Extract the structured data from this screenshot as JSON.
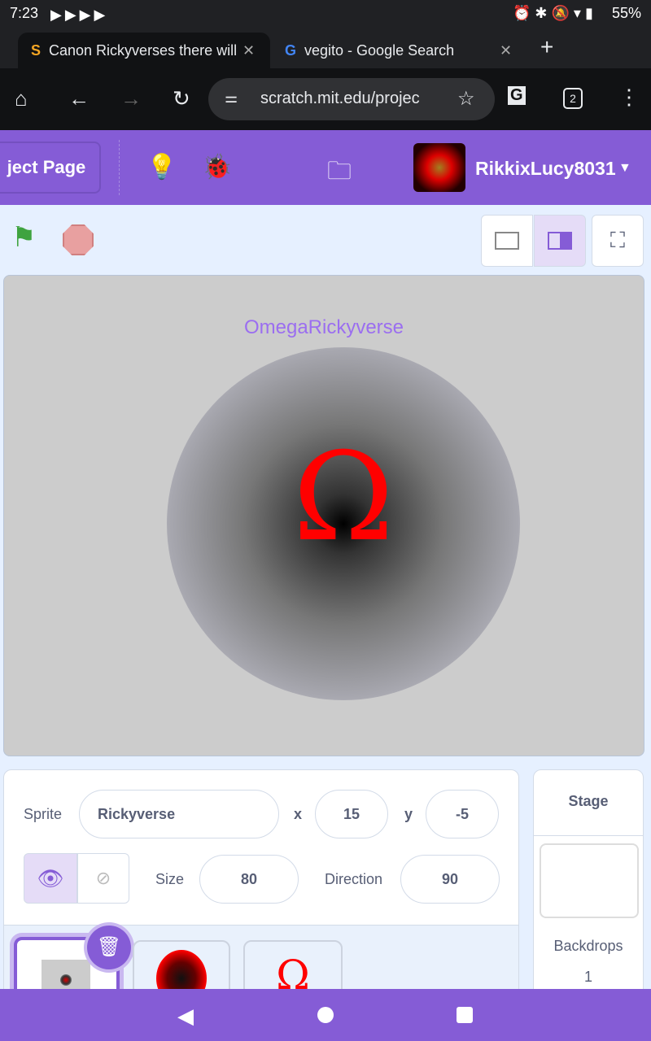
{
  "status": {
    "time": "7:23",
    "battery": "55%"
  },
  "tabs": [
    {
      "title": "Canon Rickyverses there will",
      "active": true
    },
    {
      "title": "vegito - Google Search",
      "active": false
    }
  ],
  "toolbar": {
    "url": "scratch.mit.edu/projec",
    "tab_count": "2"
  },
  "menubar": {
    "project_page": "ject Page",
    "username": "RikkixLucy8031"
  },
  "stage": {
    "title": "OmegaRickyverse",
    "symbol": "Ω"
  },
  "sprite": {
    "label": "Sprite",
    "name": "Rickyverse",
    "x_label": "x",
    "x": "15",
    "y_label": "y",
    "y": "-5",
    "size_label": "Size",
    "size": "80",
    "direction_label": "Direction",
    "direction": "90"
  },
  "sprites": [
    {
      "name": "Rickyverse",
      "selected": true
    },
    {
      "name": "red orb"
    },
    {
      "name": "omega",
      "symbol": "Ω"
    }
  ],
  "stage_panel": {
    "title": "Stage",
    "backdrops_label": "Backdrops",
    "backdrops": "1"
  },
  "colors": {
    "accent": "#855cd6",
    "stage_bg": "#cccccc",
    "omega": "#ff0000"
  }
}
